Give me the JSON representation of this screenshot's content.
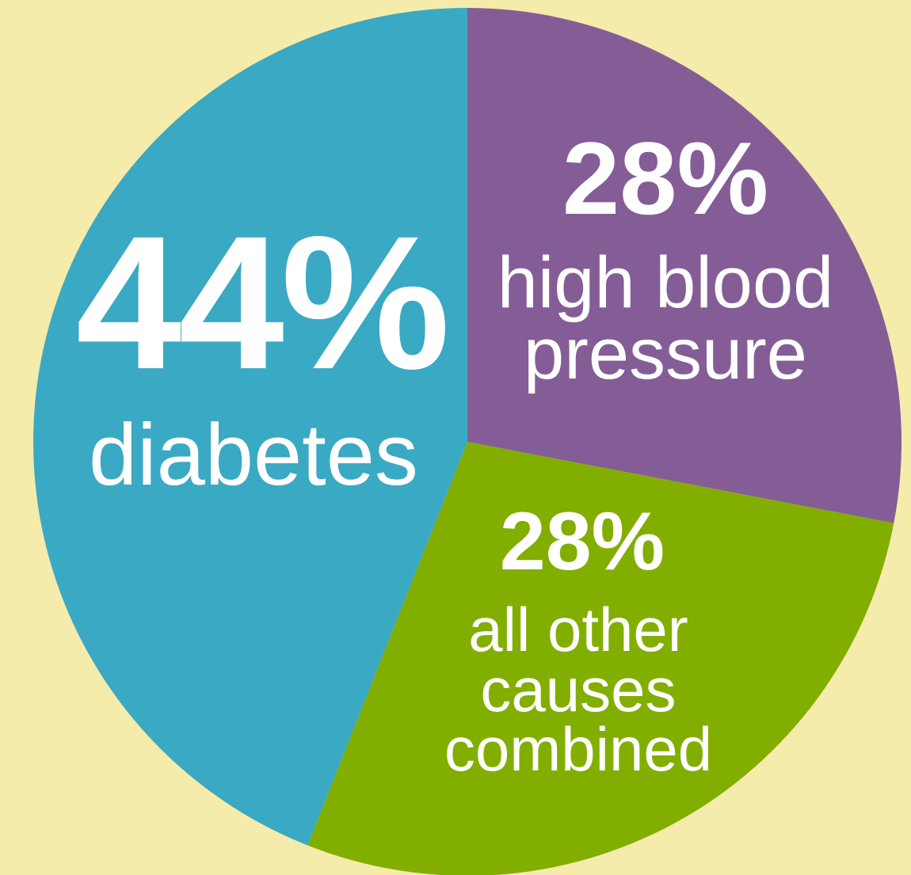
{
  "chart_data": {
    "type": "pie",
    "slices": [
      {
        "label": "diabetes",
        "value": 44,
        "value_label": "44%",
        "color": "#3aa9c3"
      },
      {
        "label": "high blood pressure",
        "value": 28,
        "value_label": "28%",
        "color": "#845d97"
      },
      {
        "label": "all other causes combined",
        "value": 28,
        "value_label": "28%",
        "color": "#82ae00"
      }
    ],
    "background": "#f5ebab"
  },
  "labels": {
    "diabetes_pct": "44%",
    "diabetes_cat": "diabetes",
    "hbp_pct": "28%",
    "hbp_cat_line1": "high blood",
    "hbp_cat_line2": "pressure",
    "other_pct": "28%",
    "other_cat_line1": "all other",
    "other_cat_line2": "causes",
    "other_cat_line3": "combined"
  }
}
